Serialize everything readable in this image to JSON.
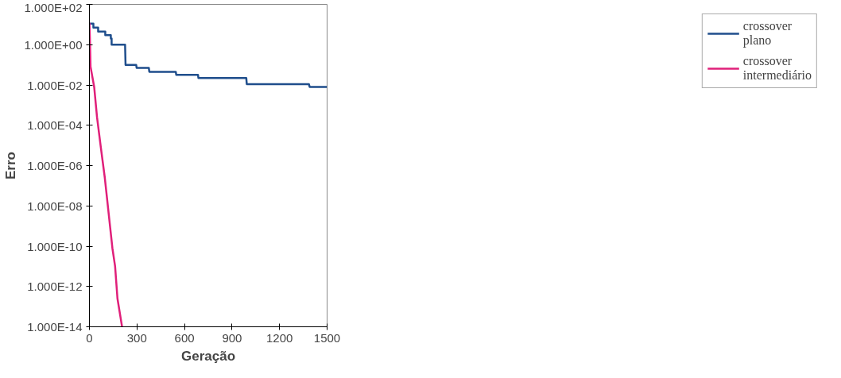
{
  "chart_data": {
    "type": "line",
    "xlabel": "Geração",
    "ylabel": "Erro",
    "log": "y",
    "xlim": [
      0,
      1500
    ],
    "xticks": [
      0,
      300,
      600,
      900,
      1200,
      1500
    ],
    "ylim": [
      1e-14,
      100
    ],
    "yticks": [
      {
        "value": 100,
        "label": "1.000E+02"
      },
      {
        "value": 1,
        "label": "1.000E+00"
      },
      {
        "value": 0.01,
        "label": "1.000E-02"
      },
      {
        "value": 0.0001,
        "label": "1.000E-04"
      },
      {
        "value": 1e-06,
        "label": "1.000E-06"
      },
      {
        "value": 1e-08,
        "label": "1.000E-08"
      },
      {
        "value": 1e-10,
        "label": "1.000E-10"
      },
      {
        "value": 1e-12,
        "label": "1.000E-12"
      },
      {
        "value": 1e-14,
        "label": "1.000E-14"
      }
    ],
    "grid": false,
    "legend": "right",
    "marker": "none",
    "line_style": "solid",
    "series": [
      {
        "name": "crossover plano",
        "color": "#1f4e8c",
        "x": [
          0,
          25,
          25,
          55,
          55,
          100,
          100,
          135,
          135,
          140,
          140,
          225,
          228,
          295,
          298,
          375,
          378,
          545,
          548,
          685,
          688,
          990,
          993,
          1385,
          1390,
          1500
        ],
        "values": [
          11,
          11,
          7,
          7,
          4.5,
          4.5,
          3,
          3,
          2,
          2,
          1,
          1,
          0.1,
          0.1,
          0.07,
          0.07,
          0.045,
          0.045,
          0.032,
          0.032,
          0.022,
          0.022,
          0.011,
          0.011,
          0.008,
          0.008
        ]
      },
      {
        "name": "crossover intermediário",
        "color": "#e0207a",
        "x": [
          0,
          3,
          7,
          30,
          48,
          72,
          97,
          121,
          145,
          162,
          177,
          206
        ],
        "values": [
          12,
          2,
          0.08,
          0.008,
          0.00025,
          8e-06,
          2.5e-07,
          4.5e-09,
          8e-11,
          1e-11,
          2.5e-13,
          1e-14
        ]
      }
    ]
  }
}
